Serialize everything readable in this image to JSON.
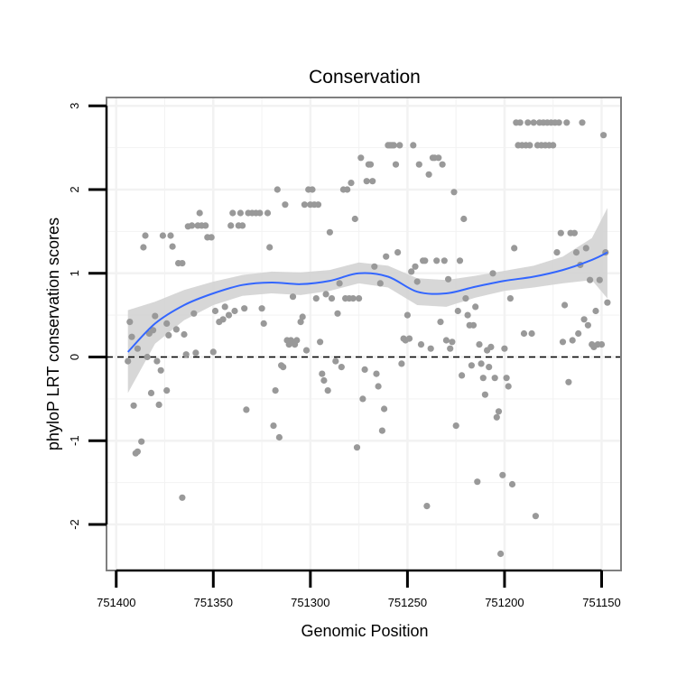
{
  "chart_data": {
    "type": "scatter",
    "title": "Conservation",
    "xlabel": "Genomic Position",
    "ylabel": "phyloP LRT conservation scores",
    "xlim": [
      751405,
      751140
    ],
    "ylim": [
      -2.55,
      3.1
    ],
    "x_reversed": true,
    "xticks": [
      751400,
      751350,
      751300,
      751250,
      751200,
      751150
    ],
    "xtick_labels": [
      "751400",
      "751350",
      "751300",
      "751250",
      "751200",
      "751150"
    ],
    "yticks": [
      3,
      2,
      1,
      0,
      -1,
      -2
    ],
    "ytick_labels": [
      "3",
      "2",
      "1",
      "0",
      "-1",
      "-2"
    ],
    "grid": true,
    "reference_line": {
      "y": 0,
      "style": "dashed"
    },
    "colors": {
      "points": "#999999",
      "smooth": "#3366ff",
      "band": "#d3d3d3",
      "grid": "#f2f2f2",
      "frame": "#7f7f7f"
    },
    "points": [
      {
        "x": 751394,
        "y": -0.05
      },
      {
        "x": 751393,
        "y": 0.42
      },
      {
        "x": 751392,
        "y": 0.24
      },
      {
        "x": 751391,
        "y": -0.58
      },
      {
        "x": 751390,
        "y": -1.15
      },
      {
        "x": 751389,
        "y": 0.1
      },
      {
        "x": 751389,
        "y": -1.13
      },
      {
        "x": 751387,
        "y": -1.01
      },
      {
        "x": 751386,
        "y": 1.31
      },
      {
        "x": 751385,
        "y": 1.45
      },
      {
        "x": 751384,
        "y": 0.0
      },
      {
        "x": 751383,
        "y": 0.28
      },
      {
        "x": 751382,
        "y": -0.43
      },
      {
        "x": 751381,
        "y": 0.32
      },
      {
        "x": 751380,
        "y": 0.49
      },
      {
        "x": 751379,
        "y": -0.05
      },
      {
        "x": 751378,
        "y": -0.57
      },
      {
        "x": 751377,
        "y": -0.16
      },
      {
        "x": 751376,
        "y": 1.45
      },
      {
        "x": 751374,
        "y": -0.4
      },
      {
        "x": 751374,
        "y": 0.4
      },
      {
        "x": 751373,
        "y": 0.26
      },
      {
        "x": 751372,
        "y": 1.45
      },
      {
        "x": 751371,
        "y": 1.32
      },
      {
        "x": 751369,
        "y": 0.33
      },
      {
        "x": 751368,
        "y": 1.12
      },
      {
        "x": 751366,
        "y": -1.68
      },
      {
        "x": 751366,
        "y": 1.12
      },
      {
        "x": 751365,
        "y": 0.27
      },
      {
        "x": 751364,
        "y": 0.03
      },
      {
        "x": 751363,
        "y": 1.56
      },
      {
        "x": 751361,
        "y": 1.57
      },
      {
        "x": 751360,
        "y": 0.52
      },
      {
        "x": 751359,
        "y": 0.05
      },
      {
        "x": 751358,
        "y": 1.57
      },
      {
        "x": 751357,
        "y": 1.72
      },
      {
        "x": 751356,
        "y": 1.57
      },
      {
        "x": 751354,
        "y": 1.57
      },
      {
        "x": 751353,
        "y": 1.43
      },
      {
        "x": 751351,
        "y": 1.43
      },
      {
        "x": 751350,
        "y": 0.06
      },
      {
        "x": 751349,
        "y": 0.55
      },
      {
        "x": 751347,
        "y": 0.42
      },
      {
        "x": 751345,
        "y": 0.45
      },
      {
        "x": 751344,
        "y": 0.6
      },
      {
        "x": 751342,
        "y": 0.5
      },
      {
        "x": 751341,
        "y": 1.57
      },
      {
        "x": 751340,
        "y": 1.72
      },
      {
        "x": 751339,
        "y": 0.55
      },
      {
        "x": 751337,
        "y": 1.57
      },
      {
        "x": 751336,
        "y": 1.72
      },
      {
        "x": 751335,
        "y": 1.57
      },
      {
        "x": 751334,
        "y": 0.58
      },
      {
        "x": 751333,
        "y": -0.63
      },
      {
        "x": 751332,
        "y": 1.72
      },
      {
        "x": 751330,
        "y": 1.72
      },
      {
        "x": 751328,
        "y": 1.72
      },
      {
        "x": 751326,
        "y": 1.72
      },
      {
        "x": 751325,
        "y": 0.58
      },
      {
        "x": 751324,
        "y": 0.4
      },
      {
        "x": 751322,
        "y": 1.72
      },
      {
        "x": 751321,
        "y": 1.31
      },
      {
        "x": 751319,
        "y": -0.82
      },
      {
        "x": 751318,
        "y": -0.4
      },
      {
        "x": 751317,
        "y": 2.0
      },
      {
        "x": 751316,
        "y": -0.96
      },
      {
        "x": 751315,
        "y": -0.1
      },
      {
        "x": 751314,
        "y": -0.12
      },
      {
        "x": 751313,
        "y": 1.82
      },
      {
        "x": 751312,
        "y": 0.2
      },
      {
        "x": 751311,
        "y": 0.15
      },
      {
        "x": 751310,
        "y": 0.2
      },
      {
        "x": 751309,
        "y": 0.72
      },
      {
        "x": 751308,
        "y": 0.15
      },
      {
        "x": 751307,
        "y": 0.2
      },
      {
        "x": 751305,
        "y": 0.42
      },
      {
        "x": 751304,
        "y": 0.48
      },
      {
        "x": 751303,
        "y": 1.82
      },
      {
        "x": 751302,
        "y": 0.08
      },
      {
        "x": 751301,
        "y": 2.0
      },
      {
        "x": 751300,
        "y": 1.82
      },
      {
        "x": 751299,
        "y": 2.0
      },
      {
        "x": 751298,
        "y": 1.82
      },
      {
        "x": 751297,
        "y": 0.7
      },
      {
        "x": 751296,
        "y": 1.82
      },
      {
        "x": 751295,
        "y": 0.18
      },
      {
        "x": 751294,
        "y": -0.2
      },
      {
        "x": 751293,
        "y": -0.28
      },
      {
        "x": 751292,
        "y": 0.75
      },
      {
        "x": 751291,
        "y": -0.4
      },
      {
        "x": 751290,
        "y": 1.49
      },
      {
        "x": 751289,
        "y": 0.7
      },
      {
        "x": 751287,
        "y": -0.05
      },
      {
        "x": 751286,
        "y": 0.52
      },
      {
        "x": 751285,
        "y": 0.88
      },
      {
        "x": 751284,
        "y": -0.12
      },
      {
        "x": 751283,
        "y": 2.0
      },
      {
        "x": 751282,
        "y": 0.7
      },
      {
        "x": 751281,
        "y": 2.0
      },
      {
        "x": 751280,
        "y": 0.7
      },
      {
        "x": 751279,
        "y": 2.08
      },
      {
        "x": 751278,
        "y": 0.7
      },
      {
        "x": 751277,
        "y": 1.65
      },
      {
        "x": 751276,
        "y": -1.08
      },
      {
        "x": 751275,
        "y": 0.7
      },
      {
        "x": 751274,
        "y": 2.38
      },
      {
        "x": 751273,
        "y": -0.5
      },
      {
        "x": 751272,
        "y": -0.15
      },
      {
        "x": 751271,
        "y": 2.1
      },
      {
        "x": 751270,
        "y": 2.3
      },
      {
        "x": 751269,
        "y": 2.3
      },
      {
        "x": 751268,
        "y": 2.1
      },
      {
        "x": 751267,
        "y": 1.08
      },
      {
        "x": 751266,
        "y": -0.2
      },
      {
        "x": 751265,
        "y": -0.35
      },
      {
        "x": 751264,
        "y": 0.88
      },
      {
        "x": 751263,
        "y": -0.88
      },
      {
        "x": 751262,
        "y": -0.62
      },
      {
        "x": 751261,
        "y": 1.2
      },
      {
        "x": 751260,
        "y": 2.53
      },
      {
        "x": 751259,
        "y": 2.53
      },
      {
        "x": 751258,
        "y": 2.53
      },
      {
        "x": 751257,
        "y": 2.53
      },
      {
        "x": 751256,
        "y": 2.3
      },
      {
        "x": 751255,
        "y": 1.25
      },
      {
        "x": 751254,
        "y": 2.53
      },
      {
        "x": 751253,
        "y": -0.08
      },
      {
        "x": 751252,
        "y": 0.22
      },
      {
        "x": 751251,
        "y": 0.2
      },
      {
        "x": 751250,
        "y": 0.5
      },
      {
        "x": 751249,
        "y": 0.22
      },
      {
        "x": 751248,
        "y": 1.02
      },
      {
        "x": 751247,
        "y": 2.53
      },
      {
        "x": 751246,
        "y": 1.08
      },
      {
        "x": 751245,
        "y": 0.9
      },
      {
        "x": 751244,
        "y": 2.3
      },
      {
        "x": 751243,
        "y": 0.15
      },
      {
        "x": 751242,
        "y": 1.15
      },
      {
        "x": 751241,
        "y": 1.15
      },
      {
        "x": 751240,
        "y": -1.78
      },
      {
        "x": 751239,
        "y": 2.18
      },
      {
        "x": 751238,
        "y": 0.1
      },
      {
        "x": 751237,
        "y": 2.38
      },
      {
        "x": 751236,
        "y": 2.38
      },
      {
        "x": 751235,
        "y": 1.15
      },
      {
        "x": 751234,
        "y": 2.38
      },
      {
        "x": 751233,
        "y": 0.42
      },
      {
        "x": 751232,
        "y": 2.3
      },
      {
        "x": 751231,
        "y": 1.15
      },
      {
        "x": 751230,
        "y": 0.2
      },
      {
        "x": 751229,
        "y": 0.93
      },
      {
        "x": 751228,
        "y": 0.1
      },
      {
        "x": 751227,
        "y": 0.18
      },
      {
        "x": 751226,
        "y": 1.97
      },
      {
        "x": 751225,
        "y": -0.82
      },
      {
        "x": 751224,
        "y": 0.55
      },
      {
        "x": 751223,
        "y": 1.15
      },
      {
        "x": 751222,
        "y": -0.22
      },
      {
        "x": 751221,
        "y": 1.65
      },
      {
        "x": 751220,
        "y": 0.7
      },
      {
        "x": 751219,
        "y": 0.5
      },
      {
        "x": 751218,
        "y": 0.38
      },
      {
        "x": 751217,
        "y": -0.1
      },
      {
        "x": 751216,
        "y": 0.38
      },
      {
        "x": 751215,
        "y": 0.6
      },
      {
        "x": 751214,
        "y": -1.49
      },
      {
        "x": 751213,
        "y": 0.15
      },
      {
        "x": 751212,
        "y": -0.08
      },
      {
        "x": 751211,
        "y": -0.25
      },
      {
        "x": 751210,
        "y": -0.45
      },
      {
        "x": 751209,
        "y": 0.08
      },
      {
        "x": 751208,
        "y": -0.12
      },
      {
        "x": 751207,
        "y": 0.12
      },
      {
        "x": 751206,
        "y": 1.0
      },
      {
        "x": 751205,
        "y": -0.25
      },
      {
        "x": 751204,
        "y": -0.72
      },
      {
        "x": 751203,
        "y": -0.65
      },
      {
        "x": 751202,
        "y": -2.35
      },
      {
        "x": 751201,
        "y": -1.41
      },
      {
        "x": 751200,
        "y": 0.1
      },
      {
        "x": 751199,
        "y": -0.25
      },
      {
        "x": 751198,
        "y": -0.35
      },
      {
        "x": 751197,
        "y": 0.7
      },
      {
        "x": 751196,
        "y": -1.52
      },
      {
        "x": 751195,
        "y": 1.3
      },
      {
        "x": 751194,
        "y": 2.8
      },
      {
        "x": 751193,
        "y": 2.53
      },
      {
        "x": 751192,
        "y": 2.8
      },
      {
        "x": 751191,
        "y": 2.53
      },
      {
        "x": 751190,
        "y": 0.28
      },
      {
        "x": 751189,
        "y": 2.53
      },
      {
        "x": 751188,
        "y": 2.8
      },
      {
        "x": 751187,
        "y": 2.53
      },
      {
        "x": 751186,
        "y": 0.28
      },
      {
        "x": 751185,
        "y": 2.8
      },
      {
        "x": 751184,
        "y": -1.9
      },
      {
        "x": 751183,
        "y": 2.53
      },
      {
        "x": 751182,
        "y": 2.8
      },
      {
        "x": 751181,
        "y": 2.53
      },
      {
        "x": 751180,
        "y": 2.8
      },
      {
        "x": 751179,
        "y": 2.53
      },
      {
        "x": 751178,
        "y": 2.8
      },
      {
        "x": 751177,
        "y": 2.53
      },
      {
        "x": 751176,
        "y": 2.8
      },
      {
        "x": 751175,
        "y": 2.53
      },
      {
        "x": 751174,
        "y": 2.8
      },
      {
        "x": 751173,
        "y": 1.25
      },
      {
        "x": 751172,
        "y": 2.8
      },
      {
        "x": 751171,
        "y": 1.48
      },
      {
        "x": 751170,
        "y": 0.18
      },
      {
        "x": 751169,
        "y": 0.62
      },
      {
        "x": 751168,
        "y": 2.8
      },
      {
        "x": 751167,
        "y": -0.3
      },
      {
        "x": 751166,
        "y": 1.48
      },
      {
        "x": 751165,
        "y": 0.2
      },
      {
        "x": 751164,
        "y": 1.48
      },
      {
        "x": 751163,
        "y": 1.25
      },
      {
        "x": 751162,
        "y": 0.28
      },
      {
        "x": 751161,
        "y": 1.1
      },
      {
        "x": 751160,
        "y": 2.8
      },
      {
        "x": 751159,
        "y": 0.45
      },
      {
        "x": 751158,
        "y": 1.3
      },
      {
        "x": 751157,
        "y": 0.38
      },
      {
        "x": 751156,
        "y": 0.92
      },
      {
        "x": 751155,
        "y": 0.15
      },
      {
        "x": 751154,
        "y": 0.12
      },
      {
        "x": 751153,
        "y": 0.55
      },
      {
        "x": 751152,
        "y": 0.15
      },
      {
        "x": 751151,
        "y": 0.92
      },
      {
        "x": 751150,
        "y": 0.15
      },
      {
        "x": 751149,
        "y": 2.65
      },
      {
        "x": 751148,
        "y": 1.25
      },
      {
        "x": 751147,
        "y": 0.65
      }
    ],
    "smooth": {
      "x": [
        751394,
        751380,
        751365,
        751350,
        751335,
        751320,
        751305,
        751290,
        751275,
        751260,
        751245,
        751230,
        751215,
        751200,
        751185,
        751170,
        751155,
        751147
      ],
      "y": [
        0.06,
        0.4,
        0.62,
        0.76,
        0.86,
        0.89,
        0.87,
        0.91,
        1.0,
        0.96,
        0.78,
        0.76,
        0.84,
        0.91,
        0.96,
        1.04,
        1.16,
        1.25
      ],
      "lo": [
        -0.43,
        0.16,
        0.44,
        0.62,
        0.73,
        0.76,
        0.74,
        0.79,
        0.88,
        0.83,
        0.62,
        0.6,
        0.71,
        0.79,
        0.83,
        0.88,
        0.92,
        0.7
      ],
      "hi": [
        0.56,
        0.66,
        0.8,
        0.9,
        0.98,
        1.02,
        1.01,
        1.04,
        1.13,
        1.09,
        0.94,
        0.92,
        0.97,
        1.03,
        1.09,
        1.2,
        1.42,
        1.78
      ]
    }
  }
}
